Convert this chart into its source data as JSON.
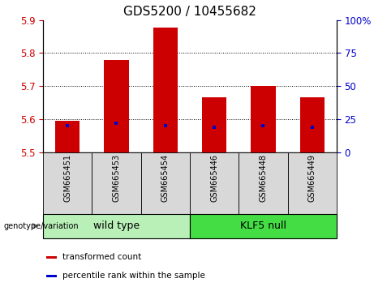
{
  "title": "GDS5200 / 10455682",
  "samples": [
    "GSM665451",
    "GSM665453",
    "GSM665454",
    "GSM665446",
    "GSM665448",
    "GSM665449"
  ],
  "bar_tops": [
    5.595,
    5.778,
    5.878,
    5.665,
    5.7,
    5.665
  ],
  "bar_bottom": 5.5,
  "percentile_values": [
    20,
    22,
    20,
    19,
    20,
    19
  ],
  "ylim_left": [
    5.5,
    5.9
  ],
  "ylim_right": [
    0,
    100
  ],
  "yticks_left": [
    5.5,
    5.6,
    5.7,
    5.8,
    5.9
  ],
  "yticks_right": [
    0,
    25,
    50,
    75,
    100
  ],
  "yticklabels_right": [
    "0",
    "25",
    "50",
    "75",
    "100%"
  ],
  "bar_color": "#cc0000",
  "percentile_color": "#0000cc",
  "groups": [
    {
      "label": "wild type",
      "indices": [
        0,
        1,
        2
      ],
      "color": "#aaffaa"
    },
    {
      "label": "KLF5 null",
      "indices": [
        3,
        4,
        5
      ],
      "color": "#44ee44"
    }
  ],
  "genotype_label": "genotype/variation",
  "legend_items": [
    {
      "label": "transformed count",
      "color": "#cc0000"
    },
    {
      "label": "percentile rank within the sample",
      "color": "#0000cc"
    }
  ],
  "bar_width": 0.5,
  "title_fontsize": 11,
  "tick_fontsize": 8.5,
  "label_fontsize": 8,
  "sample_fontsize": 7,
  "group_fontsize": 9,
  "legend_fontsize": 7.5,
  "grid_yticks": [
    5.6,
    5.7,
    5.8
  ],
  "sample_cell_color": "#d8d8d8",
  "wildtype_color": "#b8f0b8",
  "klf5null_color": "#44dd44"
}
